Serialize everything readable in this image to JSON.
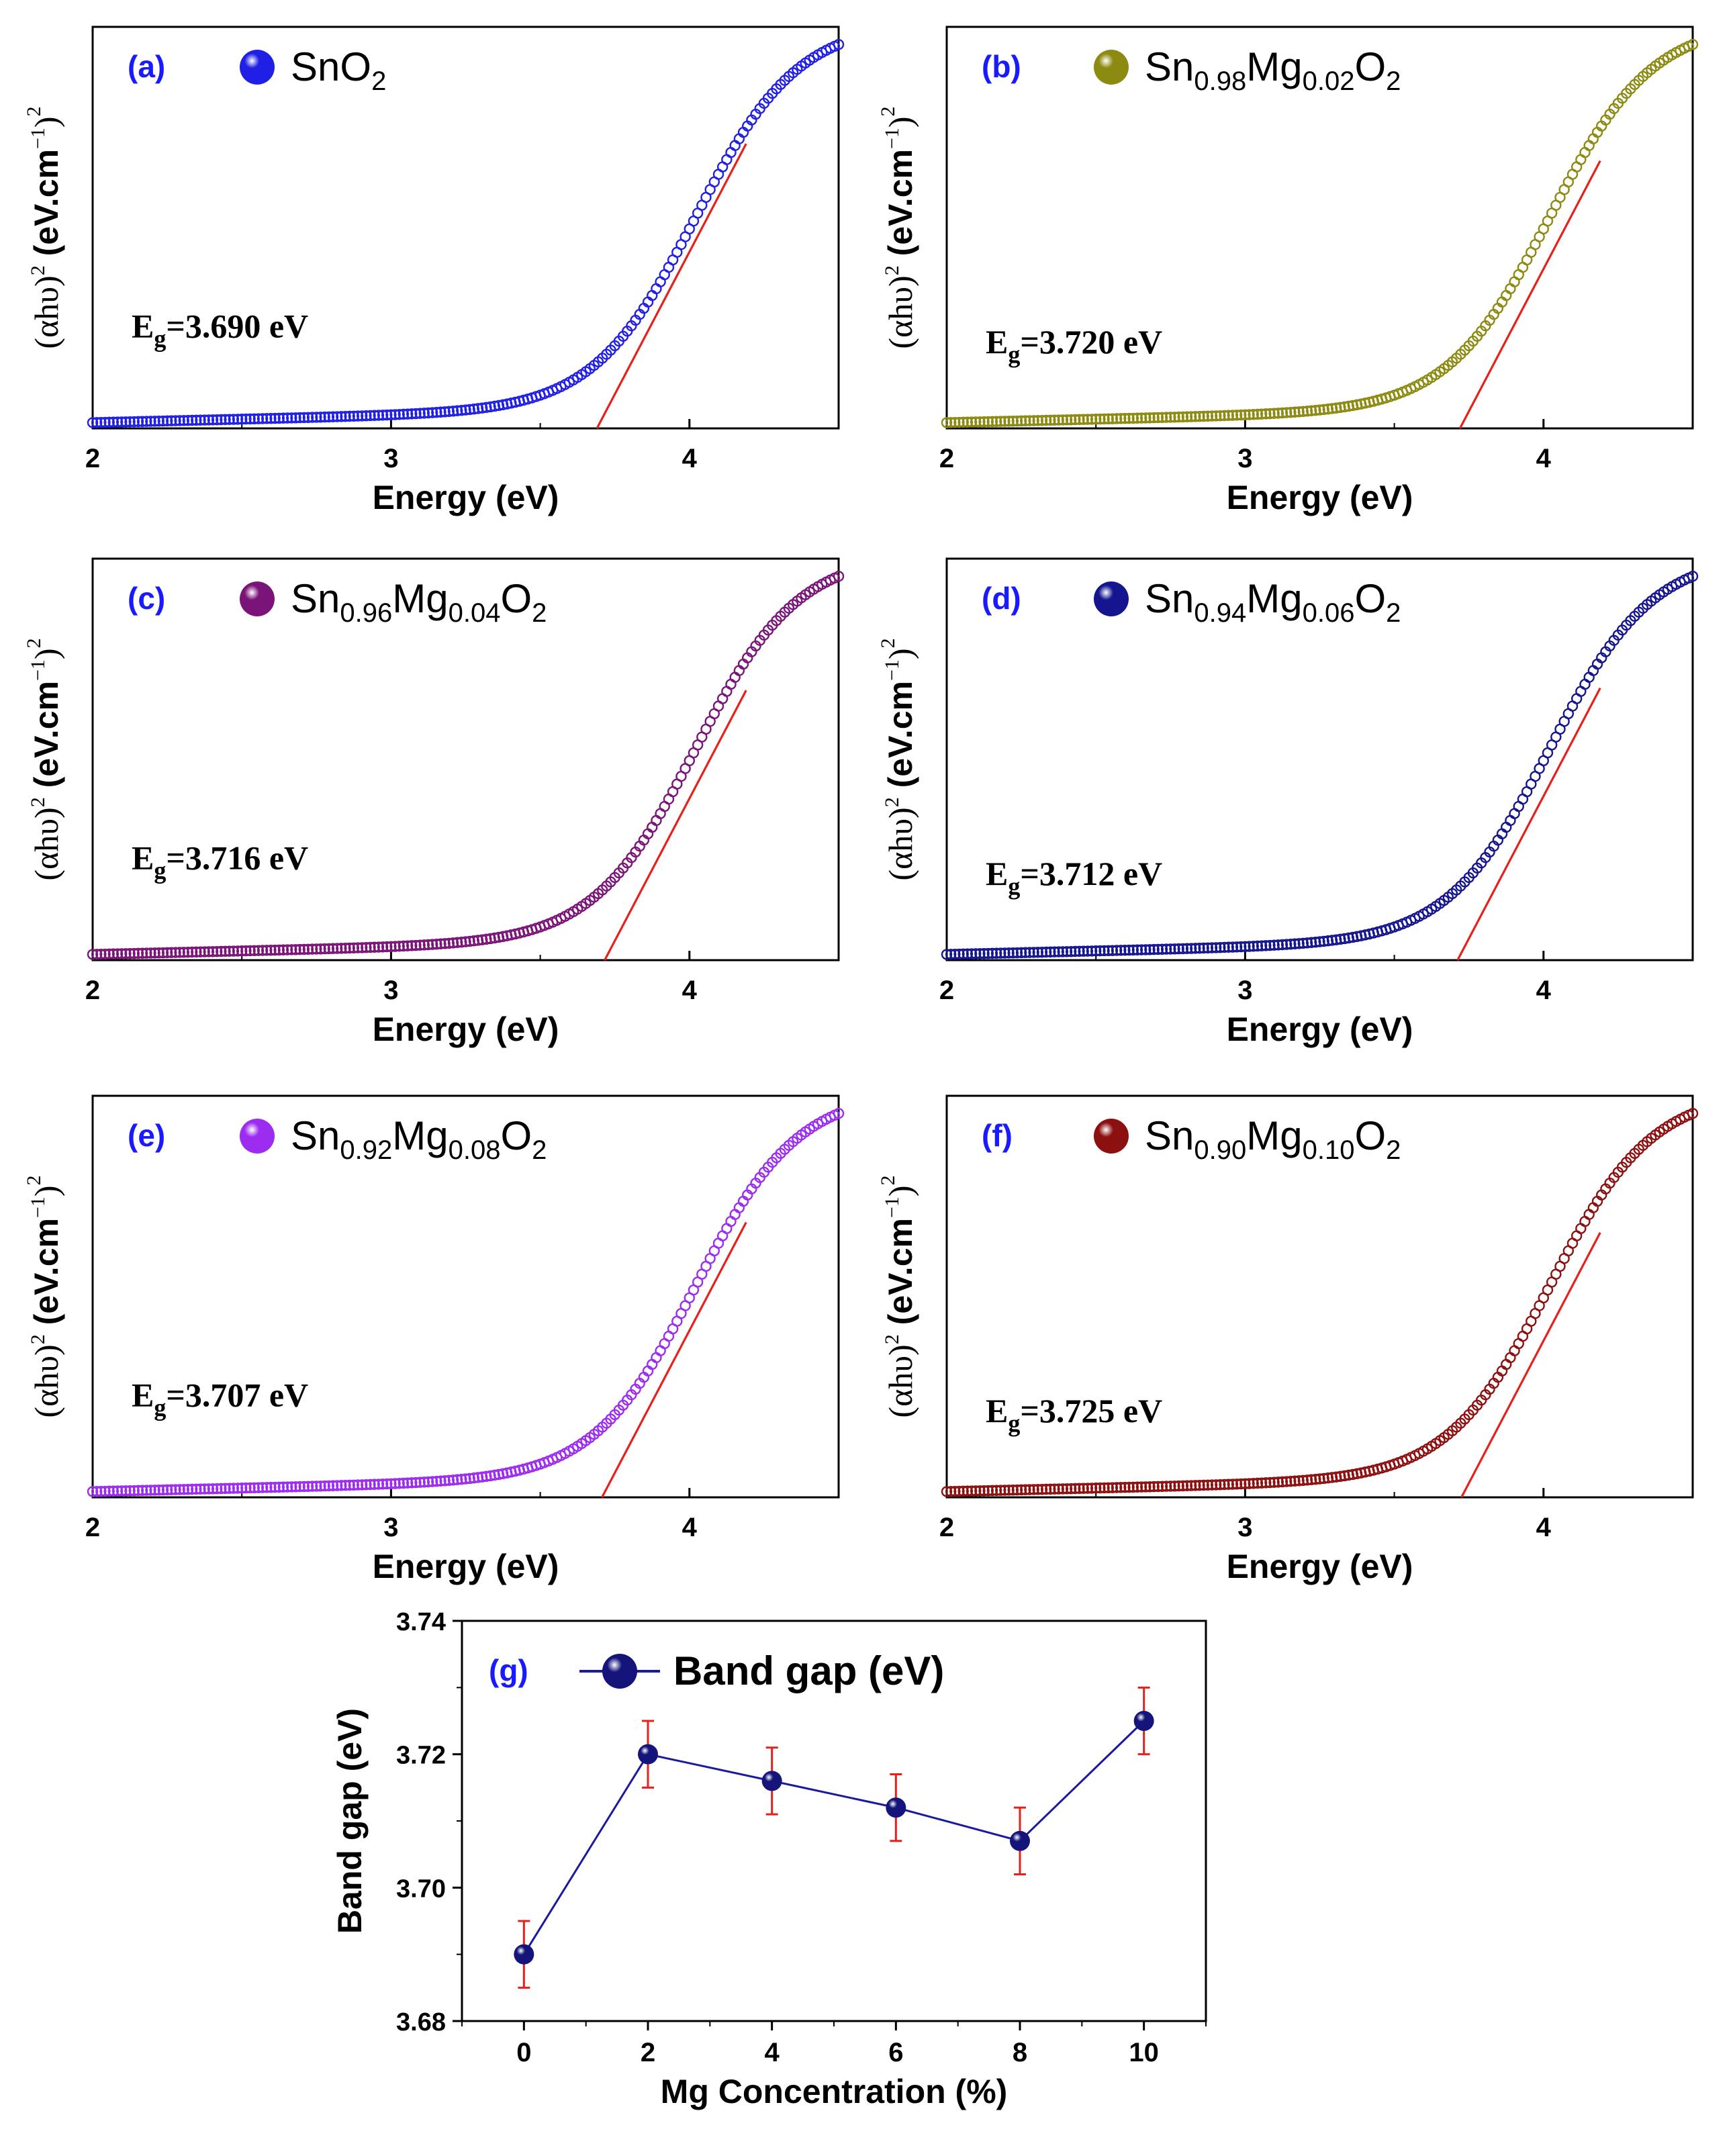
{
  "figure": {
    "description_free": true
  },
  "chart_data": [
    {
      "id": "a",
      "type": "scatter",
      "panel_label": "(a)",
      "legend": {
        "main": "SnO",
        "parts": [
          {
            "t": "SnO",
            "sub": false
          },
          {
            "t": "2",
            "sub": true
          }
        ]
      },
      "marker_color": "#1f1fe6",
      "fit_color": "#e8201c",
      "eg_label": {
        "E": "E",
        "g": "g",
        "rest": "=3.690 eV"
      },
      "band_gap_ev": 3.69,
      "xlabel": "Energy (eV)",
      "ylabel": {
        "a": "(αhυ)",
        "sup2": "2",
        "b": " (eV.cm",
        "supm1": "−1",
        "c": ")",
        "supouter": "2"
      },
      "xlim": [
        2,
        4.5
      ],
      "xticks": [
        "2",
        "3",
        "4"
      ],
      "curve_params": {
        "y0": 0.015,
        "amp": 1.0,
        "center": 4.02,
        "width": 0.17,
        "baseline_slope": 0.018
      }
    },
    {
      "id": "b",
      "type": "scatter",
      "panel_label": "(b)",
      "legend": {
        "parts": [
          {
            "t": "Sn",
            "sub": false
          },
          {
            "t": "0.98",
            "sub": true
          },
          {
            "t": "Mg",
            "sub": false
          },
          {
            "t": "0.02",
            "sub": true
          },
          {
            "t": "O",
            "sub": false
          },
          {
            "t": "2",
            "sub": true
          }
        ]
      },
      "marker_color": "#8c8a10",
      "fit_color": "#e8201c",
      "eg_label": {
        "E": "E",
        "g": "g",
        "rest": "=3.720 eV"
      },
      "band_gap_ev": 3.72,
      "xlabel": "Energy (eV)",
      "ylabel": {
        "a": "(αhυ)",
        "sup2": "2",
        "b": " (eV.cm",
        "supm1": "−1",
        "c": ")",
        "supouter": "2"
      },
      "xlim": [
        2,
        4.5
      ],
      "xticks": [
        "2",
        "3",
        "4"
      ],
      "curve_params": {
        "y0": 0.015,
        "amp": 1.0,
        "center": 4.02,
        "width": 0.17,
        "baseline_slope": 0.018
      }
    },
    {
      "id": "c",
      "type": "scatter",
      "panel_label": "(c)",
      "legend": {
        "parts": [
          {
            "t": "Sn",
            "sub": false
          },
          {
            "t": "0.96",
            "sub": true
          },
          {
            "t": "Mg",
            "sub": false
          },
          {
            "t": "0.04",
            "sub": true
          },
          {
            "t": "O",
            "sub": false
          },
          {
            "t": "2",
            "sub": true
          }
        ]
      },
      "marker_color": "#7a1478",
      "fit_color": "#e8201c",
      "eg_label": {
        "E": "E",
        "g": "g",
        "rest": "=3.716 eV"
      },
      "band_gap_ev": 3.716,
      "xlabel": "Energy (eV)",
      "ylabel": {
        "a": "(αhυ)",
        "sup2": "2",
        "b": " (eV.cm",
        "supm1": "−1",
        "c": ")",
        "supouter": "2"
      },
      "xlim": [
        2,
        4.5
      ],
      "xticks": [
        "2",
        "3",
        "4"
      ],
      "curve_params": {
        "y0": 0.015,
        "amp": 1.0,
        "center": 4.02,
        "width": 0.17,
        "baseline_slope": 0.018
      }
    },
    {
      "id": "d",
      "type": "scatter",
      "panel_label": "(d)",
      "legend": {
        "parts": [
          {
            "t": "Sn",
            "sub": false
          },
          {
            "t": "0.94",
            "sub": true
          },
          {
            "t": "Mg",
            "sub": false
          },
          {
            "t": "0.06",
            "sub": true
          },
          {
            "t": "O",
            "sub": false
          },
          {
            "t": "2",
            "sub": true
          }
        ]
      },
      "marker_color": "#15168f",
      "fit_color": "#e8201c",
      "eg_label": {
        "E": "E",
        "g": "g",
        "rest": "=3.712 eV"
      },
      "band_gap_ev": 3.712,
      "xlabel": "Energy (eV)",
      "ylabel": {
        "a": "(αhυ)",
        "sup2": "2",
        "b": " (eV.cm",
        "supm1": "−1",
        "c": ")",
        "supouter": "2"
      },
      "xlim": [
        2,
        4.5
      ],
      "xticks": [
        "2",
        "3",
        "4"
      ],
      "curve_params": {
        "y0": 0.015,
        "amp": 1.0,
        "center": 4.02,
        "width": 0.17,
        "baseline_slope": 0.018
      }
    },
    {
      "id": "e",
      "type": "scatter",
      "panel_label": "(e)",
      "legend": {
        "parts": [
          {
            "t": "Sn",
            "sub": false
          },
          {
            "t": "0.92",
            "sub": true
          },
          {
            "t": "Mg",
            "sub": false
          },
          {
            "t": "0.08",
            "sub": true
          },
          {
            "t": "O",
            "sub": false
          },
          {
            "t": "2",
            "sub": true
          }
        ]
      },
      "marker_color": "#9b2cf0",
      "fit_color": "#e8201c",
      "eg_label": {
        "E": "E",
        "g": "g",
        "rest": "=3.707 eV"
      },
      "band_gap_ev": 3.707,
      "xlabel": "Energy (eV)",
      "ylabel": {
        "a": "(αhυ)",
        "sup2": "2",
        "b": " (eV.cm",
        "supm1": "−1",
        "c": ")",
        "supouter": "2"
      },
      "xlim": [
        2,
        4.5
      ],
      "xticks": [
        "2",
        "3",
        "4"
      ],
      "curve_params": {
        "y0": 0.015,
        "amp": 1.0,
        "center": 4.02,
        "width": 0.17,
        "baseline_slope": 0.018
      }
    },
    {
      "id": "f",
      "type": "scatter",
      "panel_label": "(f)",
      "legend": {
        "parts": [
          {
            "t": "Sn",
            "sub": false
          },
          {
            "t": "0.90",
            "sub": true
          },
          {
            "t": "Mg",
            "sub": false
          },
          {
            "t": "0.10",
            "sub": true
          },
          {
            "t": "O",
            "sub": false
          },
          {
            "t": "2",
            "sub": true
          }
        ]
      },
      "marker_color": "#8c1010",
      "fit_color": "#e8201c",
      "eg_label": {
        "E": "E",
        "g": "g",
        "rest": "=3.725 eV"
      },
      "band_gap_ev": 3.725,
      "xlabel": "Energy (eV)",
      "ylabel": {
        "a": "(αhυ)",
        "sup2": "2",
        "b": " (eV.cm",
        "supm1": "−1",
        "c": ")",
        "supouter": "2"
      },
      "xlim": [
        2,
        4.5
      ],
      "xticks": [
        "2",
        "3",
        "4"
      ],
      "curve_params": {
        "y0": 0.015,
        "amp": 1.0,
        "center": 4.02,
        "width": 0.17,
        "baseline_slope": 0.018
      }
    },
    {
      "id": "g",
      "type": "line",
      "panel_label": "(g)",
      "legend": "Band gap (eV)",
      "xlabel": "Mg Concentration (%)",
      "ylabel": "Band gap (eV)",
      "x": [
        0,
        2,
        4,
        6,
        8,
        10
      ],
      "y": [
        3.69,
        3.72,
        3.716,
        3.712,
        3.707,
        3.725
      ],
      "error": [
        0.005,
        0.005,
        0.005,
        0.005,
        0.005,
        0.005
      ],
      "xlim": [
        -1,
        11
      ],
      "ylim": [
        3.68,
        3.74
      ],
      "xticks": [
        "0",
        "2",
        "4",
        "6",
        "8",
        "10"
      ],
      "yticks": [
        "3.68",
        "3.70",
        "3.72",
        "3.74"
      ],
      "marker_color": "#14147a",
      "line_color": "#1a1aa0",
      "error_color": "#e8201c"
    }
  ],
  "colors": {
    "panel_label": "#1a1aff",
    "axis": "#000000",
    "text": "#000000"
  }
}
